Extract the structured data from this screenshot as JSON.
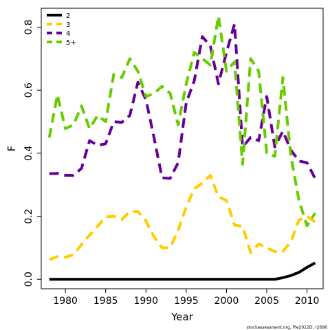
{
  "chart_data": {
    "type": "line",
    "title": "",
    "xlabel": "Year",
    "ylabel": "F",
    "xlim": [
      1977,
      2012
    ],
    "ylim": [
      -0.03,
      0.86
    ],
    "xticks": [
      1980,
      1985,
      1990,
      1995,
      2000,
      2005,
      2010
    ],
    "yticks": [
      0.0,
      0.2,
      0.4,
      0.6,
      0.8
    ],
    "ytick_labels": [
      "0.0",
      "0.2",
      "0.4",
      "0.6",
      "0.8"
    ],
    "grid": false,
    "legend_position": "top-left",
    "x": [
      1978,
      1979,
      1980,
      1981,
      1982,
      1983,
      1984,
      1985,
      1986,
      1987,
      1988,
      1989,
      1990,
      1991,
      1992,
      1993,
      1994,
      1995,
      1996,
      1997,
      1998,
      1999,
      2000,
      2001,
      2002,
      2003,
      2004,
      2005,
      2006,
      2007,
      2008,
      2009,
      2010,
      2011
    ],
    "series": [
      {
        "name": "2",
        "color": "#000000",
        "dash": "solid",
        "values": [
          0.0,
          0.0,
          0.0,
          0.0,
          0.0,
          0.0,
          0.0,
          0.0,
          0.0,
          0.0,
          0.0,
          0.0,
          0.0,
          0.0,
          0.0,
          0.0,
          0.0,
          0.0,
          0.0,
          0.0,
          0.0,
          0.0,
          0.0,
          0.0,
          0.0,
          0.0,
          0.0,
          0.0,
          0.0,
          0.005,
          0.012,
          0.022,
          0.038,
          0.052
        ]
      },
      {
        "name": "3",
        "color": "#ffcc00",
        "dash": "dashed",
        "values": [
          0.062,
          0.072,
          0.07,
          0.078,
          0.11,
          0.14,
          0.168,
          0.198,
          0.2,
          0.19,
          0.215,
          0.215,
          0.185,
          0.135,
          0.1,
          0.1,
          0.155,
          0.23,
          0.288,
          0.305,
          0.33,
          0.262,
          0.25,
          0.172,
          0.168,
          0.085,
          0.112,
          0.1,
          0.088,
          0.088,
          0.12,
          0.188,
          0.2,
          0.182
        ]
      },
      {
        "name": "4",
        "color": "#660099",
        "dash": "dashed",
        "values": [
          0.335,
          0.336,
          0.33,
          0.33,
          0.352,
          0.44,
          0.425,
          0.43,
          0.5,
          0.498,
          0.52,
          0.625,
          0.57,
          0.45,
          0.322,
          0.32,
          0.37,
          0.56,
          0.63,
          0.77,
          0.74,
          0.62,
          0.72,
          0.81,
          0.42,
          0.45,
          0.44,
          0.58,
          0.42,
          0.47,
          0.41,
          0.375,
          0.37,
          0.32
        ]
      },
      {
        "name": "5+",
        "color": "#66cc00",
        "dash": "dashed",
        "values": [
          0.45,
          0.585,
          0.478,
          0.49,
          0.55,
          0.478,
          0.52,
          0.5,
          0.65,
          0.64,
          0.7,
          0.66,
          0.58,
          0.59,
          0.612,
          0.59,
          0.49,
          0.62,
          0.72,
          0.7,
          0.68,
          0.835,
          0.66,
          0.69,
          0.365,
          0.7,
          0.66,
          0.4,
          0.39,
          0.64,
          0.39,
          0.25,
          0.17,
          0.21
        ]
      }
    ],
    "annotation": "stockassessment.org, Ple2012D, r2696"
  }
}
